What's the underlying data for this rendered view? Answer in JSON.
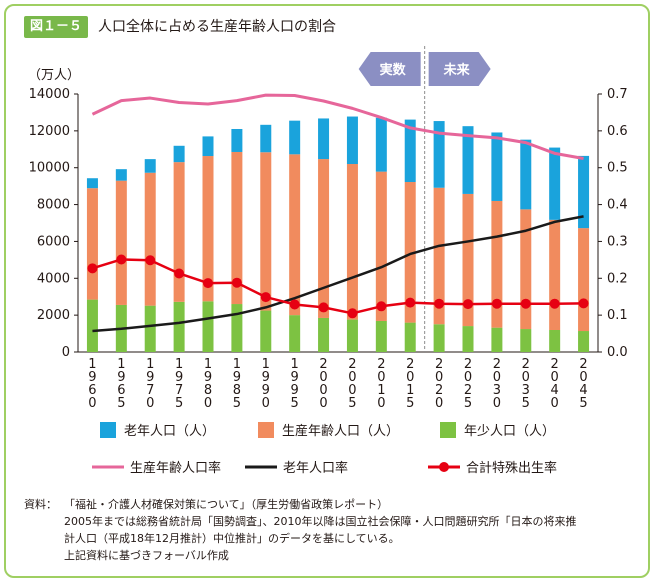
{
  "figure": {
    "badge": "図１－５",
    "title": "人口全体に占める生産年齢人口の割合"
  },
  "chart_data": {
    "type": "bar",
    "stacked": true,
    "categories": [
      "1960",
      "1965",
      "1970",
      "1975",
      "1980",
      "1985",
      "1990",
      "1995",
      "2000",
      "2005",
      "2010",
      "2015",
      "2020",
      "2025",
      "2030",
      "2035",
      "2040",
      "2045"
    ],
    "category_labels": [
      [
        "1",
        "9",
        "6",
        "0"
      ],
      [
        "1",
        "9",
        "6",
        "5"
      ],
      [
        "1",
        "9",
        "7",
        "0"
      ],
      [
        "1",
        "9",
        "7",
        "5"
      ],
      [
        "1",
        "9",
        "8",
        "0"
      ],
      [
        "1",
        "9",
        "8",
        "5"
      ],
      [
        "1",
        "9",
        "9",
        "0"
      ],
      [
        "1",
        "9",
        "9",
        "5"
      ],
      [
        "2",
        "0",
        "0",
        "0"
      ],
      [
        "2",
        "0",
        "0",
        "5"
      ],
      [
        "2",
        "0",
        "1",
        "0"
      ],
      [
        "2",
        "0",
        "1",
        "5"
      ],
      [
        "2",
        "0",
        "2",
        "0"
      ],
      [
        "2",
        "0",
        "2",
        "5"
      ],
      [
        "2",
        "0",
        "3",
        "0"
      ],
      [
        "2",
        "0",
        "3",
        "5"
      ],
      [
        "2",
        "0",
        "4",
        "0"
      ],
      [
        "2",
        "0",
        "4",
        "5"
      ]
    ],
    "y_left": {
      "unit": "（万人）",
      "ylim": [
        0,
        14000
      ],
      "ticks": [
        "0",
        "2000",
        "4000",
        "6000",
        "8000",
        "10000",
        "12000",
        "14000"
      ]
    },
    "y_right": {
      "ylim": [
        0,
        0.7
      ],
      "ticks": [
        "0.0",
        "0.1",
        "0.2",
        "0.3",
        "0.4",
        "0.5",
        "0.6",
        "0.7"
      ]
    },
    "series": [
      {
        "name": "年少人口（人）",
        "kind": "bar",
        "color": "#7dc242",
        "values": [
          2843,
          2553,
          2515,
          2722,
          2751,
          2603,
          2249,
          2001,
          1847,
          1759,
          1684,
          1595,
          1507,
          1407,
          1321,
          1246,
          1194,
          1138
        ]
      },
      {
        "name": "生産年齢人口（人）",
        "kind": "bar",
        "color": "#f18b5e",
        "values": [
          6047,
          6744,
          7212,
          7581,
          7883,
          8251,
          8590,
          8726,
          8622,
          8442,
          8103,
          7629,
          7406,
          7170,
          6875,
          6494,
          5978,
          5584
        ]
      },
      {
        "name": "老年人口（人）",
        "kind": "bar",
        "color": "#1aa3dc",
        "values": [
          540,
          624,
          739,
          887,
          1065,
          1247,
          1489,
          1826,
          2204,
          2576,
          2925,
          3387,
          3619,
          3677,
          3716,
          3782,
          3921,
          3919
        ]
      },
      {
        "name": "生産年齢人口率",
        "kind": "line",
        "axis": "right",
        "color": "#e6669a",
        "values": [
          0.645,
          0.682,
          0.689,
          0.677,
          0.673,
          0.682,
          0.697,
          0.696,
          0.681,
          0.661,
          0.636,
          0.608,
          0.594,
          0.587,
          0.581,
          0.568,
          0.539,
          0.525
        ]
      },
      {
        "name": "老年人口率",
        "kind": "line",
        "axis": "right",
        "color": "#1a1a1a",
        "values": [
          0.057,
          0.063,
          0.071,
          0.079,
          0.091,
          0.103,
          0.121,
          0.146,
          0.174,
          0.202,
          0.23,
          0.266,
          0.288,
          0.3,
          0.313,
          0.329,
          0.353,
          0.368
        ]
      },
      {
        "name": "合計特殊出生率",
        "kind": "line",
        "axis": "right",
        "color": "#e60012",
        "markers": true,
        "values": [
          0.227,
          0.251,
          0.249,
          0.213,
          0.187,
          0.188,
          0.149,
          0.129,
          0.121,
          0.105,
          0.124,
          0.134,
          0.131,
          0.13,
          0.131,
          0.131,
          0.131,
          0.132
        ]
      }
    ],
    "annotations": {
      "actual": "実数",
      "forecast": "未来"
    }
  },
  "note": {
    "prefix": "資料：",
    "line1": "「福祉・介護人材確保対策について」（厚生労働省政策レポート）",
    "line2": "2005年までは総務省統計局「国勢調査」、2010年以降は国立社会保障・人口問題研究所「日本の将来推",
    "line3": "計人口（平成18年12月推計）中位推計」のデータを基にしている。",
    "line4": "上記資料に基づきフォーバル作成"
  }
}
